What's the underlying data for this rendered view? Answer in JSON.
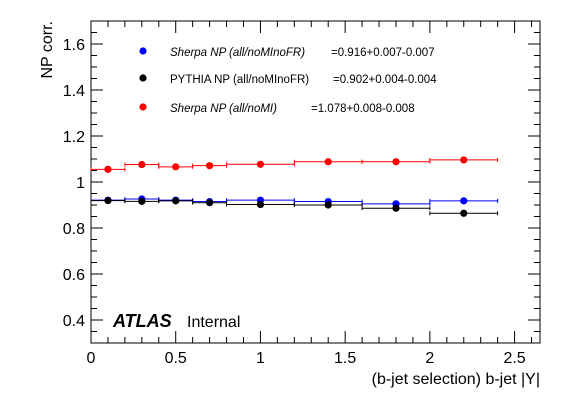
{
  "chart_data": {
    "type": "scatter",
    "xlabel": "(b-jet selection) b-jet |Y|",
    "ylabel": "NP corr.",
    "xlim": [
      0,
      2.65
    ],
    "ylim": [
      0.3,
      1.7
    ],
    "x_ticks": [
      {
        "v": 0,
        "label": "0"
      },
      {
        "v": 0.5,
        "label": "0.5"
      },
      {
        "v": 1,
        "label": "1"
      },
      {
        "v": 1.5,
        "label": "1.5"
      },
      {
        "v": 2,
        "label": "2"
      },
      {
        "v": 2.5,
        "label": "2.5"
      }
    ],
    "y_ticks": [
      {
        "v": 0.4,
        "label": "0.4"
      },
      {
        "v": 0.6,
        "label": "0.6"
      },
      {
        "v": 0.8,
        "label": "0.8"
      },
      {
        "v": 1.0,
        "label": "1"
      },
      {
        "v": 1.2,
        "label": "1.2"
      },
      {
        "v": 1.4,
        "label": "1.4"
      },
      {
        "v": 1.6,
        "label": "1.6"
      }
    ],
    "grid": false,
    "legend_position": "top-left",
    "annotation": {
      "bold": "ATLAS",
      "normal": "Internal"
    },
    "series": [
      {
        "name": "Sherpa NP (all/noMInoFR)",
        "name_italic": true,
        "fit": "=0.916+0.007-0.007",
        "color": "#0000ff",
        "points": [
          {
            "x": 0.1,
            "xlo": 0.0,
            "xhi": 0.2,
            "y": 0.921
          },
          {
            "x": 0.3,
            "xlo": 0.2,
            "xhi": 0.4,
            "y": 0.926
          },
          {
            "x": 0.5,
            "xlo": 0.4,
            "xhi": 0.6,
            "y": 0.921
          },
          {
            "x": 0.7,
            "xlo": 0.6,
            "xhi": 0.8,
            "y": 0.915
          },
          {
            "x": 1.0,
            "xlo": 0.8,
            "xhi": 1.2,
            "y": 0.921
          },
          {
            "x": 1.4,
            "xlo": 1.2,
            "xhi": 1.6,
            "y": 0.915
          },
          {
            "x": 1.8,
            "xlo": 1.6,
            "xhi": 2.0,
            "y": 0.905
          },
          {
            "x": 2.2,
            "xlo": 2.0,
            "xhi": 2.4,
            "y": 0.918
          }
        ]
      },
      {
        "name": "PYTHIA NP (all/noMInoFR)",
        "name_italic": false,
        "fit": "=0.902+0.004-0.004",
        "color": "#000000",
        "points": [
          {
            "x": 0.1,
            "xlo": 0.0,
            "xhi": 0.2,
            "y": 0.919
          },
          {
            "x": 0.3,
            "xlo": 0.2,
            "xhi": 0.4,
            "y": 0.916
          },
          {
            "x": 0.5,
            "xlo": 0.4,
            "xhi": 0.6,
            "y": 0.918
          },
          {
            "x": 0.7,
            "xlo": 0.6,
            "xhi": 0.8,
            "y": 0.91
          },
          {
            "x": 1.0,
            "xlo": 0.8,
            "xhi": 1.2,
            "y": 0.902
          },
          {
            "x": 1.4,
            "xlo": 1.2,
            "xhi": 1.6,
            "y": 0.9
          },
          {
            "x": 1.8,
            "xlo": 1.6,
            "xhi": 2.0,
            "y": 0.886
          },
          {
            "x": 2.2,
            "xlo": 2.0,
            "xhi": 2.4,
            "y": 0.864
          }
        ]
      },
      {
        "name": "Sherpa NP (all/noMI)",
        "name_italic": true,
        "fit": "=1.078+0.008-0.008",
        "color": "#ff0000",
        "points": [
          {
            "x": 0.1,
            "xlo": 0.0,
            "xhi": 0.2,
            "y": 1.055
          },
          {
            "x": 0.3,
            "xlo": 0.2,
            "xhi": 0.4,
            "y": 1.076
          },
          {
            "x": 0.5,
            "xlo": 0.4,
            "xhi": 0.6,
            "y": 1.066
          },
          {
            "x": 0.7,
            "xlo": 0.6,
            "xhi": 0.8,
            "y": 1.071
          },
          {
            "x": 1.0,
            "xlo": 0.8,
            "xhi": 1.2,
            "y": 1.077
          },
          {
            "x": 1.4,
            "xlo": 1.2,
            "xhi": 1.6,
            "y": 1.088
          },
          {
            "x": 1.8,
            "xlo": 1.6,
            "xhi": 2.0,
            "y": 1.088
          },
          {
            "x": 2.2,
            "xlo": 2.0,
            "xhi": 2.4,
            "y": 1.096
          }
        ]
      }
    ]
  }
}
